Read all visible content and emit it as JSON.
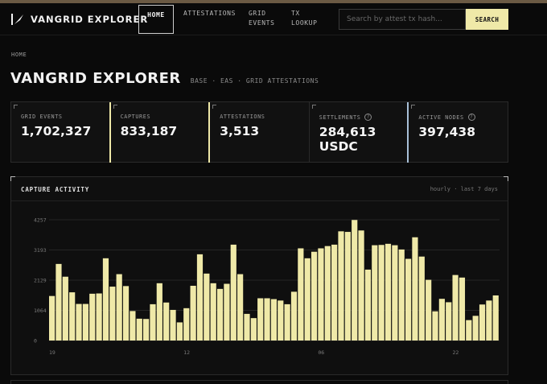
{
  "nav": {
    "brand": "VANGRID EXPLORER",
    "items": [
      {
        "label": "HOME",
        "active": true
      },
      {
        "label": "ATTESTATIONS"
      },
      {
        "label": "GRID EVENTS"
      },
      {
        "label": "TX LOOKUP"
      }
    ],
    "search_placeholder": "Search by attest tx hash...",
    "search_button": "SEARCH"
  },
  "breadcrumb": "HOME",
  "page": {
    "title": "VANGRID EXPLORER",
    "subtitle": "BASE · EAS · GRID ATTESTATIONS"
  },
  "stats": [
    {
      "label": "GRID EVENTS",
      "value": "1,702,327",
      "info": false,
      "accent": "#efe9a8"
    },
    {
      "label": "CAPTURES",
      "value": "833,187",
      "info": false,
      "accent": "#efe9a8"
    },
    {
      "label": "ATTESTATIONS",
      "value": "3,513",
      "info": false,
      "accent": "#2a2a2a"
    },
    {
      "label": "SETTLEMENTS",
      "value": "284,613 USDC",
      "info": true,
      "accent": "#a8c0d8"
    },
    {
      "label": "ACTIVE NODES",
      "value": "397,438",
      "info": true,
      "accent": "#2a2a2a"
    }
  ],
  "colors": {
    "accent": "#efe9a8",
    "bar": "#efe9a8"
  },
  "chart_panel": {
    "title": "CAPTURE ACTIVITY",
    "meta": "hourly · last 7 days"
  },
  "chart_data": {
    "type": "bar",
    "title": "CAPTURE ACTIVITY",
    "ylim": [
      0,
      4257
    ],
    "yticks": [
      0,
      1064,
      2129,
      3193,
      4257
    ],
    "ytick_labels": [
      "0",
      "1064",
      "2129",
      "3193",
      "4257"
    ],
    "xtick_labels": [
      {
        "index": 0,
        "label": "19"
      },
      {
        "index": 20,
        "label": "12"
      },
      {
        "index": 40,
        "label": "06"
      },
      {
        "index": 60,
        "label": "22"
      }
    ],
    "grid": true,
    "values": [
      1570,
      2700,
      2250,
      1700,
      1290,
      1290,
      1650,
      1660,
      2900,
      1900,
      2340,
      1920,
      1040,
      770,
      760,
      1280,
      2020,
      1340,
      1080,
      640,
      1140,
      1930,
      3040,
      2360,
      2020,
      1820,
      2000,
      3380,
      2340,
      940,
      790,
      1490,
      1490,
      1460,
      1410,
      1280,
      1720,
      3250,
      2900,
      3130,
      3250,
      3330,
      3380,
      3850,
      3830,
      4250,
      3880,
      2500,
      3360,
      3370,
      3410,
      3360,
      3210,
      2880,
      3640,
      2960,
      2140,
      1030,
      1470,
      1350,
      2310,
      2220,
      720,
      870,
      1270,
      1410,
      1590
    ]
  }
}
